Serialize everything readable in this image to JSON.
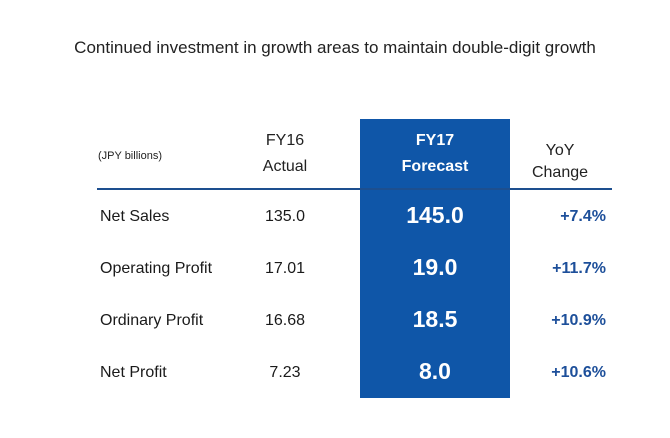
{
  "title": "Continued investment in growth areas to maintain double-digit growth",
  "table": {
    "unit_label": "(JPY billions)",
    "headers": {
      "actual": [
        "FY16",
        "Actual"
      ],
      "forecast": [
        "FY17",
        "Forecast"
      ],
      "yoy": [
        "YoY",
        "Change"
      ]
    },
    "rows": [
      {
        "label": "Net Sales",
        "actual": "135.0",
        "forecast": "145.0",
        "yoy": "+7.4%"
      },
      {
        "label": "Operating Profit",
        "actual": "17.01",
        "forecast": "19.0",
        "yoy": "+11.7%"
      },
      {
        "label": "Ordinary Profit",
        "actual": "16.68",
        "forecast": "18.5",
        "yoy": "+10.9%"
      },
      {
        "label": "Net Profit",
        "actual": "7.23",
        "forecast": "8.0",
        "yoy": "+10.6%"
      }
    ]
  },
  "colors": {
    "highlight_column": "#0f56a8",
    "yoy_text": "#1d4f9a",
    "header_rule": "#1d4f8f"
  }
}
